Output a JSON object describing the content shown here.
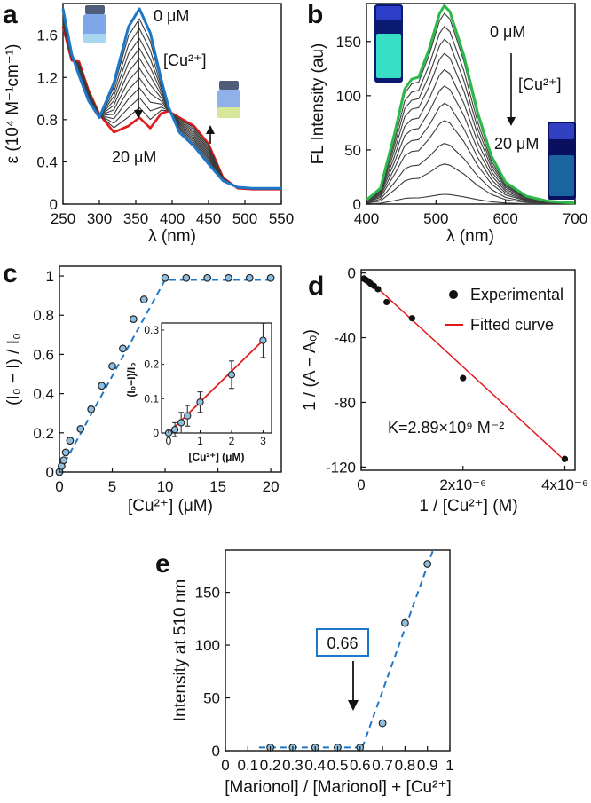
{
  "colors": {
    "blue": "#1f77c8",
    "red": "#e31a1c",
    "gray": "#3c3c3c",
    "marker_fill": "#8fbfe0",
    "dash_blue": "#1f77c8"
  },
  "chart_data": [
    {
      "panel": "a",
      "type": "line",
      "xlabel": "λ (nm)",
      "ylabel": "ε (10⁴ M⁻¹cm⁻¹)",
      "xlim": [
        250,
        550
      ],
      "ylim": [
        0,
        1.9
      ],
      "xticks": [
        "250",
        "300",
        "350",
        "400",
        "450",
        "500",
        "550"
      ],
      "yticks": [
        "0",
        "0.4",
        "0.8",
        "1.2",
        "1.6"
      ],
      "annotations": {
        "top": "0 μM",
        "titrant": "[Cu²⁺]",
        "bottom": "20 μM"
      },
      "series_count": 12,
      "curve_points_x": [
        250,
        262,
        272,
        285,
        300,
        320,
        340,
        355,
        370,
        385,
        395,
        410,
        430,
        450,
        470,
        490,
        510,
        530,
        550
      ],
      "start_series": {
        "name": "0 μM",
        "color": "blue",
        "values": [
          1.85,
          1.42,
          1.22,
          0.98,
          0.82,
          1.15,
          1.68,
          1.85,
          1.62,
          1.18,
          0.92,
          0.68,
          0.55,
          0.38,
          0.22,
          0.16,
          0.15,
          0.15,
          0.15
        ]
      },
      "end_series": {
        "name": "20 μM",
        "color": "red",
        "values": [
          1.68,
          1.36,
          1.35,
          1.08,
          0.85,
          0.68,
          0.74,
          0.82,
          0.72,
          0.86,
          0.88,
          0.82,
          0.74,
          0.57,
          0.25,
          0.15,
          0.14,
          0.14,
          0.14
        ]
      }
    },
    {
      "panel": "b",
      "type": "line",
      "xlabel": "λ (nm)",
      "ylabel": "FL Intensity (au)",
      "xlim": [
        400,
        700
      ],
      "ylim": [
        0,
        185
      ],
      "xticks": [
        "400",
        "500",
        "600",
        "700"
      ],
      "yticks": [
        "0",
        "50",
        "100",
        "150"
      ],
      "annotations": {
        "top": "0 μM",
        "titrant": "[Cu²⁺]",
        "bottom": "20 μM"
      },
      "spectrum_points_x": [
        400,
        420,
        440,
        455,
        465,
        475,
        490,
        505,
        512,
        520,
        540,
        560,
        580,
        600,
        630,
        660,
        700
      ],
      "spectrum_shape": [
        0.02,
        0.08,
        0.35,
        0.58,
        0.63,
        0.64,
        0.78,
        0.96,
        1.0,
        0.97,
        0.75,
        0.46,
        0.24,
        0.11,
        0.04,
        0.015,
        0.005
      ],
      "peak_values": [
        183,
        176,
        164,
        152,
        139,
        124,
        109,
        93,
        77,
        56,
        37,
        9
      ],
      "start_color": "#2db84a"
    },
    {
      "panel": "c",
      "type": "scatter",
      "xlabel": "[Cu²⁺] (μM)",
      "ylabel": "(I₀ − I) / I₀",
      "xlim": [
        0,
        21
      ],
      "ylim": [
        0,
        1.05
      ],
      "xticks": [
        "0",
        "5",
        "10",
        "15",
        "20"
      ],
      "yticks": [
        "0",
        "0.2",
        "0.4",
        "0.6",
        "0.8",
        "1"
      ],
      "x": [
        0,
        0.2,
        0.4,
        0.6,
        1,
        2,
        3,
        4,
        5,
        6,
        7,
        8,
        10,
        12,
        14,
        16,
        18,
        20
      ],
      "y": [
        0,
        0.03,
        0.06,
        0.1,
        0.16,
        0.22,
        0.32,
        0.44,
        0.54,
        0.63,
        0.78,
        0.88,
        0.99,
        0.99,
        0.99,
        0.99,
        0.99,
        0.99
      ],
      "fit": {
        "x": [
          0,
          10,
          20.5
        ],
        "y": [
          0,
          0.98,
          0.98
        ]
      },
      "inset": {
        "xlabel": "[Cu²⁺] (μM)",
        "ylabel": "(I₀−I)/I₀",
        "xlim": [
          0,
          3.1
        ],
        "ylim": [
          0,
          0.3
        ],
        "xticks": [
          "0",
          "1",
          "2",
          "3"
        ],
        "yticks": [
          "0",
          "0.1",
          "0.2",
          "0.3"
        ],
        "x": [
          0,
          0.2,
          0.4,
          0.6,
          1,
          2,
          3
        ],
        "y": [
          0.0,
          0.01,
          0.03,
          0.05,
          0.09,
          0.17,
          0.27
        ],
        "err": [
          0.0,
          0.02,
          0.03,
          0.03,
          0.03,
          0.04,
          0.05
        ]
      }
    },
    {
      "panel": "d",
      "type": "scatter",
      "xlabel": "1 / [Cu²⁺] (M)",
      "ylabel": "1 / (A − A₀)",
      "xlim": [
        0,
        4.2e-06
      ],
      "ylim": [
        -122,
        2
      ],
      "xticks": [
        "0",
        "2x10⁻⁶",
        "4x10⁻⁶"
      ],
      "yticks": [
        "0",
        "-40",
        "-80",
        "-120"
      ],
      "x": [
        5e-08,
        8e-08,
        1e-07,
        1.25e-07,
        1.67e-07,
        2e-07,
        2.5e-07,
        3.3e-07,
        5e-07,
        1e-06,
        2e-06,
        4e-06
      ],
      "y": [
        -3.5,
        -4,
        -4.5,
        -5,
        -6,
        -7,
        -8,
        -10,
        -18,
        -28,
        -65,
        -115
      ],
      "fit": {
        "x": [
          5e-08,
          4e-06
        ],
        "y": [
          -1.5,
          -116
        ]
      },
      "legend": {
        "items": [
          "Experimental",
          "Fitted curve"
        ],
        "position": "top-right"
      },
      "annotation": "K=2.89×10⁹ M⁻²"
    },
    {
      "panel": "e",
      "type": "scatter",
      "xlabel": "[Marionol] / [Marionol] + [Cu²⁺]",
      "ylabel": "Intensity at 510 nm",
      "xlim": [
        0,
        1
      ],
      "ylim": [
        0,
        190
      ],
      "xticks": [
        "0",
        "0.1",
        "0.2",
        "0.3",
        "0.4",
        "0.5",
        "0.6",
        "0.7",
        "0.8",
        "0.9",
        "1"
      ],
      "yticks": [
        "0",
        "50",
        "100",
        "150"
      ],
      "x": [
        0.2,
        0.3,
        0.4,
        0.5,
        0.6,
        0.7,
        0.8,
        0.9
      ],
      "y": [
        3,
        3,
        3,
        3,
        3,
        26,
        121,
        177
      ],
      "fit1": {
        "x": [
          0.15,
          0.61
        ],
        "y": [
          3,
          3
        ]
      },
      "fit2": {
        "x": [
          0.61,
          0.925
        ],
        "y": [
          3,
          190
        ]
      },
      "annotation": "0.66"
    }
  ]
}
